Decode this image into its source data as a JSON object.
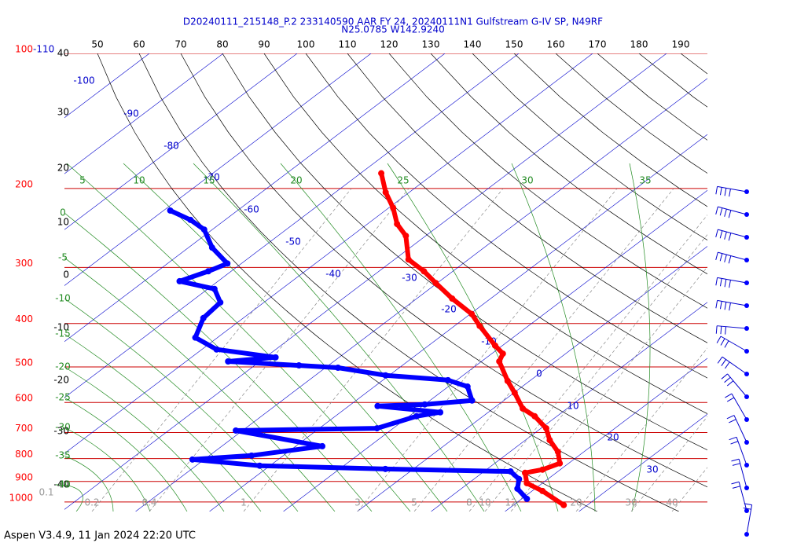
{
  "title": "D20240111_215148_P.2 233140590 AAR FY 24, 20240111N1 Gulfstream G-IV SP, N49RF",
  "subtitle": "N25.0785 W142.9240",
  "footer": "Aspen V3.4.9, 11 Jan 2024  22:20 UTC",
  "chart_data": {
    "type": "skewt",
    "log_y": true,
    "ylim": [
      1050,
      100
    ],
    "yticks": [
      100,
      200,
      300,
      400,
      500,
      600,
      700,
      800,
      900,
      1000
    ],
    "isotherms": [
      -110,
      -100,
      -90,
      -80,
      -70,
      -60,
      -50,
      -40,
      -30,
      -20,
      -10,
      0,
      10,
      20,
      30
    ],
    "top_scale": [
      50,
      60,
      70,
      80,
      90,
      100,
      110,
      120,
      130,
      140,
      150,
      160,
      170,
      180,
      190
    ],
    "left_scale": [
      40,
      30,
      20,
      10,
      0,
      -10,
      -20,
      -30,
      -40
    ],
    "moist_adiabats_top": [
      5,
      10,
      15,
      20,
      25,
      30,
      35
    ],
    "moist_adiabats_left": [
      0,
      -5,
      -10,
      -15,
      -20,
      -25,
      -30,
      -35,
      -40
    ],
    "mixing_ratio": [
      0.1,
      0.2,
      0.4,
      1,
      3,
      5,
      8,
      10,
      12,
      20,
      30,
      40
    ],
    "series": [
      {
        "color": "#ff0000",
        "pressure": [
          185,
          204,
          221,
          240,
          255,
          288,
          306,
          325,
          352,
          381,
          405,
          448,
          467,
          486,
          537,
          571,
          619,
          644,
          685,
          728,
          773,
          820,
          847,
          861,
          908,
          945,
          1016
        ],
        "values": [
          -57.2,
          -53.2,
          -49.4,
          -46.0,
          -42.7,
          -38.1,
          -33.9,
          -30.2,
          -25.2,
          -19.8,
          -16.6,
          -11.0,
          -8.5,
          -7.6,
          -3.0,
          0.1,
          4.0,
          7.0,
          10.7,
          13.3,
          16.5,
          18.8,
          17.6,
          15.8,
          17.9,
          21.4,
          26.8
        ]
      },
      {
        "color": "#0000ff",
        "pressure": [
          224,
          235,
          247,
          271,
          294,
          306,
          322,
          335,
          359,
          389,
          430,
          457,
          476,
          486,
          496,
          502,
          522,
          535,
          553,
          594,
          606,
          611,
          631,
          644,
          685,
          693,
          751,
          788,
          804,
          830,
          844,
          855,
          889,
          934,
          984
        ],
        "values": [
          -79.1,
          -74.7,
          -71.1,
          -66.8,
          -61.9,
          -63.1,
          -65.2,
          -59.1,
          -55.9,
          -55.4,
          -53.0,
          -48.0,
          -38.6,
          -44.3,
          -34.0,
          -28.3,
          -20.5,
          -11.2,
          -7.4,
          -4.3,
          -10.0,
          -16.1,
          -6.5,
          -9.0,
          -12.2,
          -30.9,
          -16.4,
          -24.3,
          -31.6,
          -21.4,
          -3.8,
          13.6,
          16.1,
          17.6,
          20.7
        ]
      }
    ]
  }
}
